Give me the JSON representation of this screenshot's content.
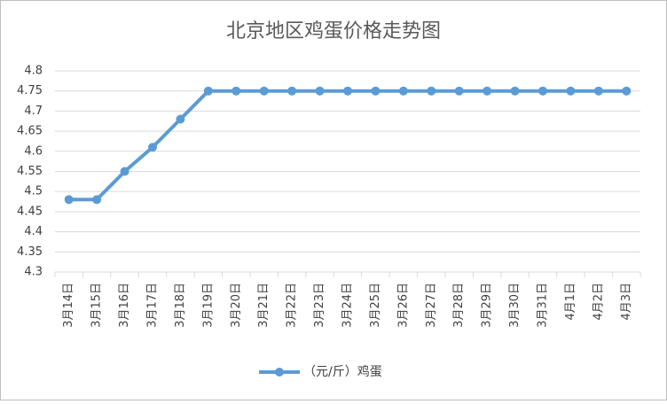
{
  "chart_data": {
    "type": "line",
    "title": "北京地区鸡蛋价格走势图",
    "categories": [
      "3月14日",
      "3月15日",
      "3月16日",
      "3月17日",
      "3月18日",
      "3月19日",
      "3月20日",
      "3月21日",
      "3月22日",
      "3月23日",
      "3月24日",
      "3月25日",
      "3月26日",
      "3月27日",
      "3月28日",
      "3月29日",
      "3月30日",
      "3月31日",
      "4月1日",
      "4月2日",
      "4月3日"
    ],
    "series": [
      {
        "name": "（元/斤）鸡蛋",
        "color": "#5b9bd5",
        "values": [
          4.48,
          4.48,
          4.55,
          4.61,
          4.68,
          4.75,
          4.75,
          4.75,
          4.75,
          4.75,
          4.75,
          4.75,
          4.75,
          4.75,
          4.75,
          4.75,
          4.75,
          4.75,
          4.75,
          4.75,
          4.75
        ]
      }
    ],
    "ylim": [
      4.3,
      4.8
    ],
    "yticks": [
      4.3,
      4.35,
      4.4,
      4.45,
      4.5,
      4.55,
      4.6,
      4.65,
      4.7,
      4.75,
      4.8
    ],
    "grid": true,
    "legend": "bottom"
  }
}
